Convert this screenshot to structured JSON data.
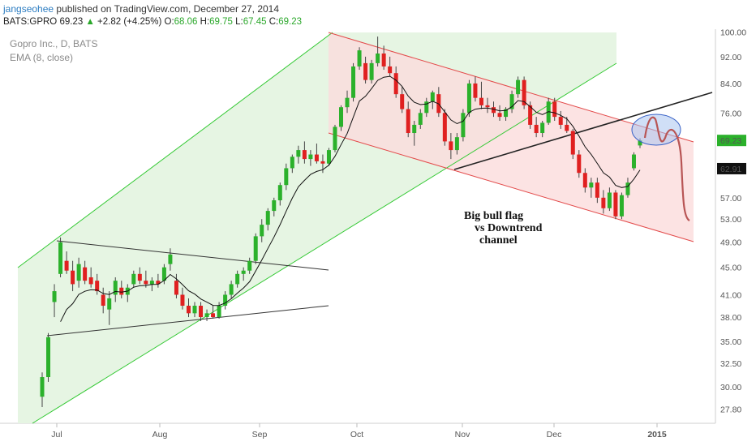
{
  "header": {
    "author": "jangseohee",
    "published": "published on TradingView.com, December 27, 2014"
  },
  "quote": {
    "symbol": "BATS:GPRO",
    "last": "69.23",
    "arrow": "▲",
    "change": "+2.82 (+4.25%)",
    "o_label": "O:",
    "o": "68.06",
    "h_label": "H:",
    "h": "69.75",
    "l_label": "L:",
    "l": "67.45",
    "c_label": "C:",
    "c": "69.23"
  },
  "legend": {
    "series_title": "Gopro Inc., D, BATS",
    "indicator": "EMA (8, close)"
  },
  "colors": {
    "up": "#2bb12b",
    "down": "#e02020",
    "ema": "#111111",
    "channel_up": "#34c934",
    "channel_down": "#e34a4a"
  },
  "annotation": [
    "Big bull flag",
    "vs Downtrend",
    "channel"
  ],
  "chart_data": {
    "type": "candlestick",
    "x_ticks": [
      "Jul",
      "Aug",
      "Sep",
      "Oct",
      "Nov",
      "Dec",
      "2015"
    ],
    "y_ticks": [
      "100.00",
      "92.00",
      "84.00",
      "76.00",
      "69.23",
      "62.91",
      "57.00",
      "53.00",
      "49.00",
      "45.00",
      "41.00",
      "38.00",
      "35.00",
      "32.50",
      "30.00",
      "27.80"
    ],
    "y_scale": "log",
    "ylim": [
      26.5,
      101
    ],
    "price_label_last": "69.23",
    "price_label_ema": "62.91",
    "candles": [
      {
        "o": 29.0,
        "h": 31.5,
        "l": 28.0,
        "c": 31.0
      },
      {
        "o": 31.0,
        "h": 36.0,
        "l": 30.5,
        "c": 35.5
      },
      {
        "o": 40.0,
        "h": 42.5,
        "l": 38.0,
        "c": 41.5
      },
      {
        "o": 44.0,
        "h": 49.8,
        "l": 43.5,
        "c": 49.0
      },
      {
        "o": 46.0,
        "h": 47.5,
        "l": 44.0,
        "c": 44.5
      },
      {
        "o": 44.5,
        "h": 46.0,
        "l": 41.5,
        "c": 42.5
      },
      {
        "o": 43.0,
        "h": 46.5,
        "l": 42.0,
        "c": 45.5
      },
      {
        "o": 45.0,
        "h": 46.0,
        "l": 42.5,
        "c": 43.0
      },
      {
        "o": 43.5,
        "h": 45.0,
        "l": 42.0,
        "c": 42.5
      },
      {
        "o": 43.0,
        "h": 44.0,
        "l": 41.0,
        "c": 41.5
      },
      {
        "o": 41.0,
        "h": 42.0,
        "l": 38.5,
        "c": 39.5
      },
      {
        "o": 39.0,
        "h": 41.5,
        "l": 37.0,
        "c": 40.5
      },
      {
        "o": 41.0,
        "h": 43.5,
        "l": 40.0,
        "c": 43.0
      },
      {
        "o": 42.0,
        "h": 43.0,
        "l": 40.5,
        "c": 41.0
      },
      {
        "o": 41.0,
        "h": 42.5,
        "l": 40.0,
        "c": 42.0
      },
      {
        "o": 42.5,
        "h": 44.5,
        "l": 42.0,
        "c": 44.0
      },
      {
        "o": 44.0,
        "h": 45.0,
        "l": 42.5,
        "c": 43.0
      },
      {
        "o": 43.0,
        "h": 44.5,
        "l": 42.0,
        "c": 42.5
      },
      {
        "o": 42.5,
        "h": 43.5,
        "l": 41.5,
        "c": 43.0
      },
      {
        "o": 43.0,
        "h": 44.0,
        "l": 42.0,
        "c": 42.5
      },
      {
        "o": 43.0,
        "h": 45.5,
        "l": 42.5,
        "c": 45.0
      },
      {
        "o": 45.5,
        "h": 48.0,
        "l": 44.5,
        "c": 47.0
      },
      {
        "o": 43.0,
        "h": 44.0,
        "l": 40.5,
        "c": 41.0
      },
      {
        "o": 41.0,
        "h": 42.0,
        "l": 39.0,
        "c": 39.5
      },
      {
        "o": 39.5,
        "h": 40.5,
        "l": 38.0,
        "c": 38.5
      },
      {
        "o": 38.5,
        "h": 40.0,
        "l": 38.0,
        "c": 39.5
      },
      {
        "o": 39.5,
        "h": 40.0,
        "l": 37.5,
        "c": 38.0
      },
      {
        "o": 38.0,
        "h": 39.0,
        "l": 37.5,
        "c": 38.5
      },
      {
        "o": 38.5,
        "h": 39.5,
        "l": 37.8,
        "c": 38.0
      },
      {
        "o": 38.0,
        "h": 40.0,
        "l": 37.8,
        "c": 39.5
      },
      {
        "o": 39.5,
        "h": 41.5,
        "l": 39.0,
        "c": 41.0
      },
      {
        "o": 41.0,
        "h": 43.0,
        "l": 40.5,
        "c": 42.5
      },
      {
        "o": 42.5,
        "h": 44.5,
        "l": 42.0,
        "c": 44.0
      },
      {
        "o": 44.0,
        "h": 45.0,
        "l": 43.0,
        "c": 44.5
      },
      {
        "o": 44.5,
        "h": 46.5,
        "l": 44.0,
        "c": 46.0
      },
      {
        "o": 46.0,
        "h": 50.5,
        "l": 45.5,
        "c": 50.0
      },
      {
        "o": 50.0,
        "h": 53.0,
        "l": 49.0,
        "c": 52.0
      },
      {
        "o": 52.0,
        "h": 55.0,
        "l": 51.0,
        "c": 54.5
      },
      {
        "o": 54.5,
        "h": 57.0,
        "l": 53.5,
        "c": 56.5
      },
      {
        "o": 56.5,
        "h": 60.0,
        "l": 55.5,
        "c": 59.5
      },
      {
        "o": 59.5,
        "h": 64.0,
        "l": 58.5,
        "c": 63.0
      },
      {
        "o": 63.0,
        "h": 66.0,
        "l": 62.0,
        "c": 65.5
      },
      {
        "o": 65.5,
        "h": 68.0,
        "l": 64.0,
        "c": 67.0
      },
      {
        "o": 67.0,
        "h": 69.0,
        "l": 64.0,
        "c": 65.0
      },
      {
        "o": 65.0,
        "h": 67.0,
        "l": 63.5,
        "c": 66.0
      },
      {
        "o": 66.0,
        "h": 68.5,
        "l": 64.0,
        "c": 64.5
      },
      {
        "o": 64.5,
        "h": 66.0,
        "l": 62.0,
        "c": 64.0
      },
      {
        "o": 64.0,
        "h": 67.5,
        "l": 63.5,
        "c": 67.0
      },
      {
        "o": 67.0,
        "h": 73.0,
        "l": 66.5,
        "c": 72.5
      },
      {
        "o": 72.5,
        "h": 78.0,
        "l": 71.5,
        "c": 77.5
      },
      {
        "o": 77.5,
        "h": 82.0,
        "l": 76.0,
        "c": 80.0
      },
      {
        "o": 80.0,
        "h": 90.0,
        "l": 79.0,
        "c": 89.0
      },
      {
        "o": 89.0,
        "h": 95.0,
        "l": 88.0,
        "c": 94.0
      },
      {
        "o": 90.0,
        "h": 92.0,
        "l": 84.0,
        "c": 85.0
      },
      {
        "o": 85.0,
        "h": 91.0,
        "l": 84.0,
        "c": 90.0
      },
      {
        "o": 90.0,
        "h": 98.5,
        "l": 89.0,
        "c": 93.0
      },
      {
        "o": 93.0,
        "h": 95.5,
        "l": 88.0,
        "c": 89.0
      },
      {
        "o": 89.0,
        "h": 92.0,
        "l": 86.0,
        "c": 87.0
      },
      {
        "o": 87.0,
        "h": 89.0,
        "l": 80.0,
        "c": 81.0
      },
      {
        "o": 81.0,
        "h": 83.0,
        "l": 76.0,
        "c": 77.0
      },
      {
        "o": 77.0,
        "h": 79.0,
        "l": 70.0,
        "c": 71.0
      },
      {
        "o": 71.0,
        "h": 74.0,
        "l": 68.0,
        "c": 73.0
      },
      {
        "o": 73.0,
        "h": 77.0,
        "l": 72.0,
        "c": 76.0
      },
      {
        "o": 76.0,
        "h": 80.0,
        "l": 75.0,
        "c": 79.0
      },
      {
        "o": 79.0,
        "h": 82.0,
        "l": 77.0,
        "c": 81.5
      },
      {
        "o": 81.0,
        "h": 83.0,
        "l": 75.0,
        "c": 76.0
      },
      {
        "o": 76.0,
        "h": 77.0,
        "l": 68.0,
        "c": 69.0
      },
      {
        "o": 69.0,
        "h": 71.0,
        "l": 65.0,
        "c": 67.0
      },
      {
        "o": 67.0,
        "h": 71.0,
        "l": 66.0,
        "c": 70.0
      },
      {
        "o": 70.0,
        "h": 77.0,
        "l": 69.0,
        "c": 76.0
      },
      {
        "o": 76.0,
        "h": 85.0,
        "l": 75.0,
        "c": 84.0
      },
      {
        "o": 84.0,
        "h": 86.0,
        "l": 79.0,
        "c": 80.0
      },
      {
        "o": 80.0,
        "h": 84.5,
        "l": 77.0,
        "c": 78.0
      },
      {
        "o": 78.0,
        "h": 80.0,
        "l": 76.0,
        "c": 77.5
      },
      {
        "o": 77.5,
        "h": 79.0,
        "l": 75.0,
        "c": 76.0
      },
      {
        "o": 76.0,
        "h": 78.0,
        "l": 74.0,
        "c": 75.0
      },
      {
        "o": 75.0,
        "h": 77.5,
        "l": 74.0,
        "c": 77.0
      },
      {
        "o": 77.0,
        "h": 82.0,
        "l": 76.0,
        "c": 81.0
      },
      {
        "o": 81.0,
        "h": 86.0,
        "l": 80.0,
        "c": 85.0
      },
      {
        "o": 85.0,
        "h": 86.0,
        "l": 77.0,
        "c": 78.0
      },
      {
        "o": 78.0,
        "h": 79.0,
        "l": 72.0,
        "c": 73.0
      },
      {
        "o": 73.0,
        "h": 75.0,
        "l": 70.0,
        "c": 71.0
      },
      {
        "o": 71.0,
        "h": 74.0,
        "l": 70.0,
        "c": 73.5
      },
      {
        "o": 73.5,
        "h": 80.0,
        "l": 73.0,
        "c": 79.0
      },
      {
        "o": 79.0,
        "h": 80.0,
        "l": 74.0,
        "c": 75.0
      },
      {
        "o": 75.0,
        "h": 76.5,
        "l": 72.0,
        "c": 73.0
      },
      {
        "o": 73.0,
        "h": 75.0,
        "l": 71.0,
        "c": 71.5
      },
      {
        "o": 71.5,
        "h": 72.0,
        "l": 65.0,
        "c": 66.0
      },
      {
        "o": 66.0,
        "h": 67.0,
        "l": 61.0,
        "c": 62.0
      },
      {
        "o": 62.0,
        "h": 63.0,
        "l": 58.0,
        "c": 59.0
      },
      {
        "o": 59.0,
        "h": 61.0,
        "l": 57.0,
        "c": 60.0
      },
      {
        "o": 60.0,
        "h": 61.0,
        "l": 56.0,
        "c": 57.0
      },
      {
        "o": 57.0,
        "h": 58.5,
        "l": 54.0,
        "c": 55.0
      },
      {
        "o": 55.0,
        "h": 59.0,
        "l": 54.5,
        "c": 58.0
      },
      {
        "o": 58.0,
        "h": 58.5,
        "l": 53.0,
        "c": 53.5
      },
      {
        "o": 53.5,
        "h": 58.0,
        "l": 53.0,
        "c": 57.5
      },
      {
        "o": 57.5,
        "h": 61.0,
        "l": 57.0,
        "c": 60.0
      },
      {
        "o": 63.0,
        "h": 66.5,
        "l": 62.5,
        "c": 66.0
      },
      {
        "o": 68.06,
        "h": 69.75,
        "l": 67.45,
        "c": 69.23
      }
    ]
  }
}
